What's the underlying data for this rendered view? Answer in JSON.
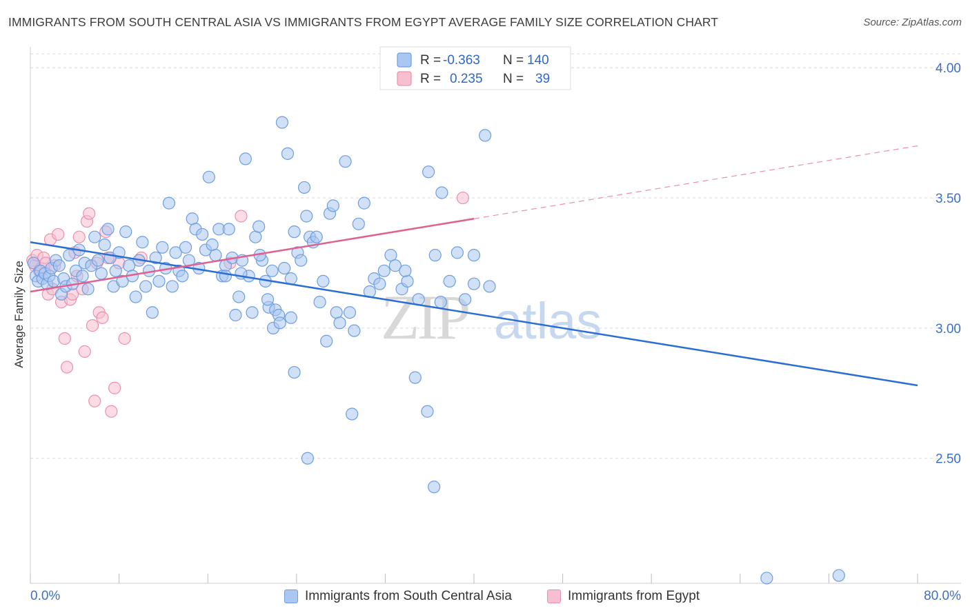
{
  "header": {
    "title": "IMMIGRANTS FROM SOUTH CENTRAL ASIA VS IMMIGRANTS FROM EGYPT AVERAGE FAMILY SIZE CORRELATION CHART",
    "source": "Source: ZipAtlas.com"
  },
  "legend": {
    "rows": [
      {
        "r_label": "R =",
        "r_value": "-0.363",
        "n_label": "N =",
        "n_value": "140"
      },
      {
        "r_label": "R =",
        "r_value": "0.235",
        "n_label": "N =",
        "n_value": "39"
      }
    ]
  },
  "bottom_legend": {
    "blue": "Immigrants from South Central Asia",
    "pink": "Immigrants from Egypt"
  },
  "watermark": {
    "zip": "ZIP",
    "atlas": "atlas"
  },
  "colors": {
    "blue_fill": "#a9c7f0",
    "blue_stroke": "#6e9de0",
    "blue_line": "#2a6dd4",
    "pink_fill": "#f7bfd0",
    "pink_stroke": "#ec8fae",
    "pink_line": "#e0608f",
    "grid": "#d8d8d8",
    "tick_label": "#3d6fc6"
  },
  "chart_data": {
    "type": "scatter",
    "title": "IMMIGRANTS FROM SOUTH CENTRAL ASIA VS IMMIGRANTS FROM EGYPT AVERAGE FAMILY SIZE CORRELATION CHART",
    "xlabel": "",
    "ylabel": "Average Family Size",
    "xlim": [
      0,
      80
    ],
    "ylim": [
      2.02,
      4.08
    ],
    "x_tick_labels": [
      "0.0%",
      "80.0%"
    ],
    "y_ticks": [
      2.5,
      3.0,
      3.5,
      4.0
    ],
    "y_tick_labels": [
      "2.50",
      "3.00",
      "3.50",
      "4.00"
    ],
    "grid": true,
    "legend_position": "top-center",
    "series": [
      {
        "name": "Immigrants from South Central Asia",
        "color": "blue",
        "trend": {
          "x0": 0,
          "y0": 3.33,
          "x1": 80,
          "y1": 2.78
        },
        "points": [
          [
            0.3,
            3.25
          ],
          [
            0.5,
            3.2
          ],
          [
            0.7,
            3.18
          ],
          [
            0.9,
            3.22
          ],
          [
            1.1,
            3.19
          ],
          [
            1.3,
            3.21
          ],
          [
            1.5,
            3.17
          ],
          [
            1.7,
            3.2
          ],
          [
            1.9,
            3.23
          ],
          [
            2.1,
            3.18
          ],
          [
            2.3,
            3.26
          ],
          [
            2.6,
            3.24
          ],
          [
            2.8,
            3.13
          ],
          [
            3.0,
            3.19
          ],
          [
            3.2,
            3.16
          ],
          [
            3.5,
            3.28
          ],
          [
            3.8,
            3.17
          ],
          [
            4.1,
            3.22
          ],
          [
            4.4,
            3.3
          ],
          [
            4.7,
            3.2
          ],
          [
            4.9,
            3.25
          ],
          [
            5.2,
            3.15
          ],
          [
            5.5,
            3.24
          ],
          [
            5.8,
            3.35
          ],
          [
            6.1,
            3.26
          ],
          [
            6.4,
            3.21
          ],
          [
            6.7,
            3.32
          ],
          [
            7.0,
            3.38
          ],
          [
            7.2,
            3.27
          ],
          [
            7.5,
            3.16
          ],
          [
            7.7,
            3.22
          ],
          [
            8.0,
            3.29
          ],
          [
            8.3,
            3.18
          ],
          [
            8.6,
            3.37
          ],
          [
            8.9,
            3.24
          ],
          [
            9.2,
            3.2
          ],
          [
            9.5,
            3.12
          ],
          [
            9.8,
            3.26
          ],
          [
            10.1,
            3.33
          ],
          [
            10.4,
            3.16
          ],
          [
            10.7,
            3.22
          ],
          [
            11.0,
            3.06
          ],
          [
            11.3,
            3.27
          ],
          [
            11.6,
            3.18
          ],
          [
            11.9,
            3.31
          ],
          [
            12.2,
            3.23
          ],
          [
            12.5,
            3.48
          ],
          [
            12.8,
            3.16
          ],
          [
            13.1,
            3.29
          ],
          [
            13.4,
            3.22
          ],
          [
            13.7,
            3.2
          ],
          [
            14.0,
            3.31
          ],
          [
            14.3,
            3.26
          ],
          [
            14.6,
            3.42
          ],
          [
            14.9,
            3.38
          ],
          [
            15.2,
            3.23
          ],
          [
            15.5,
            3.36
          ],
          [
            15.8,
            3.3
          ],
          [
            16.1,
            3.58
          ],
          [
            16.4,
            3.32
          ],
          [
            16.7,
            3.28
          ],
          [
            17.0,
            3.38
          ],
          [
            17.3,
            3.2
          ],
          [
            17.6,
            3.24
          ],
          [
            17.9,
            3.38
          ],
          [
            18.2,
            3.27
          ],
          [
            18.5,
            3.05
          ],
          [
            18.8,
            3.12
          ],
          [
            19.1,
            3.26
          ],
          [
            19.4,
            3.65
          ],
          [
            19.7,
            3.2
          ],
          [
            20.0,
            3.06
          ],
          [
            20.3,
            3.35
          ],
          [
            20.6,
            3.39
          ],
          [
            20.9,
            3.26
          ],
          [
            21.2,
            3.18
          ],
          [
            21.5,
            3.08
          ],
          [
            21.8,
            3.22
          ],
          [
            22.1,
            3.07
          ],
          [
            22.4,
            3.05
          ],
          [
            22.7,
            3.79
          ],
          [
            22.9,
            3.23
          ],
          [
            23.2,
            3.67
          ],
          [
            23.5,
            3.19
          ],
          [
            23.8,
            3.37
          ],
          [
            24.1,
            3.29
          ],
          [
            24.4,
            3.26
          ],
          [
            24.7,
            3.54
          ],
          [
            24.9,
            3.43
          ],
          [
            25.2,
            3.35
          ],
          [
            25.5,
            3.33
          ],
          [
            25.8,
            3.35
          ],
          [
            26.1,
            3.1
          ],
          [
            26.4,
            3.18
          ],
          [
            26.7,
            2.95
          ],
          [
            27.0,
            3.44
          ],
          [
            27.3,
            3.47
          ],
          [
            27.6,
            3.06
          ],
          [
            27.9,
            3.02
          ],
          [
            28.4,
            3.64
          ],
          [
            28.8,
            3.06
          ],
          [
            29.2,
            2.99
          ],
          [
            29.6,
            3.4
          ],
          [
            30.1,
            3.48
          ],
          [
            30.6,
            3.14
          ],
          [
            31.0,
            3.19
          ],
          [
            31.5,
            3.17
          ],
          [
            31.9,
            3.22
          ],
          [
            32.5,
            3.28
          ],
          [
            32.9,
            3.24
          ],
          [
            33.5,
            3.15
          ],
          [
            34.0,
            3.18
          ],
          [
            35.0,
            3.11
          ],
          [
            36.5,
            3.28
          ],
          [
            37.0,
            3.1
          ],
          [
            37.8,
            3.18
          ],
          [
            38.5,
            3.29
          ],
          [
            39.2,
            3.11
          ],
          [
            40.0,
            3.28
          ],
          [
            29.0,
            2.67
          ],
          [
            25.0,
            2.5
          ],
          [
            34.7,
            2.81
          ],
          [
            35.8,
            2.68
          ],
          [
            36.4,
            2.39
          ],
          [
            41.0,
            3.74
          ],
          [
            35.9,
            3.6
          ],
          [
            37.1,
            3.52
          ],
          [
            40.0,
            3.17
          ],
          [
            41.4,
            3.16
          ],
          [
            33.8,
            3.22
          ],
          [
            23.5,
            3.04
          ],
          [
            21.9,
            3.0
          ],
          [
            23.8,
            2.83
          ],
          [
            21.4,
            3.11
          ],
          [
            22.5,
            3.02
          ],
          [
            20.7,
            3.28
          ],
          [
            19.0,
            3.21
          ],
          [
            17.6,
            3.2
          ],
          [
            72.9,
            2.05
          ],
          [
            66.4,
            2.04
          ]
        ]
      },
      {
        "name": "Immigrants from Egypt",
        "color": "pink",
        "trend": {
          "x0": 0,
          "y0": 3.14,
          "x1": 40,
          "y1": 3.42,
          "dash_x1": 80,
          "dash_y1": 3.7
        },
        "points": [
          [
            0.2,
            3.26
          ],
          [
            0.4,
            3.24
          ],
          [
            0.6,
            3.28
          ],
          [
            0.8,
            3.22
          ],
          [
            1.0,
            3.23
          ],
          [
            1.2,
            3.27
          ],
          [
            1.4,
            3.25
          ],
          [
            1.6,
            3.13
          ],
          [
            1.8,
            3.34
          ],
          [
            2.0,
            3.15
          ],
          [
            2.2,
            3.24
          ],
          [
            2.5,
            3.36
          ],
          [
            2.8,
            3.1
          ],
          [
            3.1,
            2.96
          ],
          [
            3.3,
            2.85
          ],
          [
            3.6,
            3.11
          ],
          [
            3.8,
            3.13
          ],
          [
            4.0,
            3.29
          ],
          [
            4.2,
            3.2
          ],
          [
            4.4,
            3.35
          ],
          [
            4.7,
            3.15
          ],
          [
            4.9,
            2.91
          ],
          [
            5.1,
            3.41
          ],
          [
            5.3,
            3.44
          ],
          [
            5.6,
            3.01
          ],
          [
            5.8,
            2.72
          ],
          [
            6.0,
            3.25
          ],
          [
            6.2,
            3.06
          ],
          [
            6.5,
            3.04
          ],
          [
            6.8,
            3.37
          ],
          [
            7.0,
            3.27
          ],
          [
            7.3,
            2.68
          ],
          [
            7.6,
            2.77
          ],
          [
            8.0,
            3.25
          ],
          [
            8.5,
            2.96
          ],
          [
            10.0,
            3.27
          ],
          [
            18.0,
            3.25
          ],
          [
            19.0,
            3.43
          ],
          [
            39.0,
            3.5
          ]
        ]
      }
    ]
  }
}
